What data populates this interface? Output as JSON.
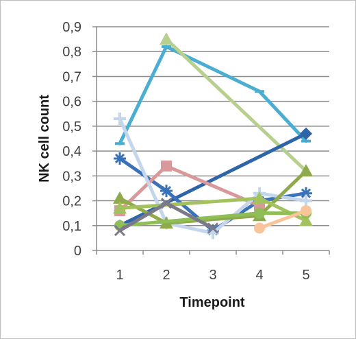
{
  "chart_data": {
    "type": "line",
    "title": "",
    "xlabel": "Timepoint",
    "ylabel": "NK cell count",
    "x": [
      1,
      2,
      3,
      4,
      5
    ],
    "ylim": [
      0,
      0.9
    ],
    "yticks": [
      "0",
      "0,1",
      "0,2",
      "0,3",
      "0,4",
      "0,5",
      "0,6",
      "0,7",
      "0,8",
      "0,9"
    ],
    "xticks": [
      "1",
      "2",
      "3",
      "4",
      "5"
    ],
    "grid": true,
    "legend": "none",
    "series": [
      {
        "color": "#4aaed0",
        "marker": "dash",
        "values": [
          0.43,
          0.82,
          null,
          0.64,
          0.44
        ]
      },
      {
        "color": "#b7cf8f",
        "marker": "triangle",
        "values": [
          null,
          0.85,
          null,
          null,
          0.32
        ]
      },
      {
        "color": "#2e64a8",
        "marker": "diamond",
        "values": [
          0.1,
          null,
          null,
          null,
          0.47
        ]
      },
      {
        "color": "#3a72b8",
        "marker": "star",
        "values": [
          0.37,
          0.24,
          0.08,
          0.2,
          0.23
        ]
      },
      {
        "color": "#d9999a",
        "marker": "square",
        "values": [
          0.16,
          0.34,
          null,
          0.18,
          null
        ]
      },
      {
        "color": "#c4d6ec",
        "marker": "plus",
        "values": [
          0.53,
          0.11,
          0.07,
          0.23,
          0.2
        ]
      },
      {
        "color": "#8faa4a",
        "marker": "triangle",
        "values": [
          0.21,
          0.11,
          null,
          0.14,
          0.32
        ]
      },
      {
        "color": "#a3c25e",
        "marker": "triangle",
        "values": [
          0.17,
          null,
          null,
          0.21,
          0.12
        ]
      },
      {
        "color": "#8fbd56",
        "marker": "circle",
        "values": [
          0.1,
          null,
          null,
          0.15,
          0.15
        ]
      },
      {
        "color": "#f9c49a",
        "marker": "circle",
        "values": [
          null,
          null,
          null,
          0.09,
          0.16
        ]
      },
      {
        "color": "#7a7a8a",
        "marker": "x",
        "values": [
          0.08,
          0.19,
          0.09,
          null,
          null
        ]
      }
    ]
  }
}
